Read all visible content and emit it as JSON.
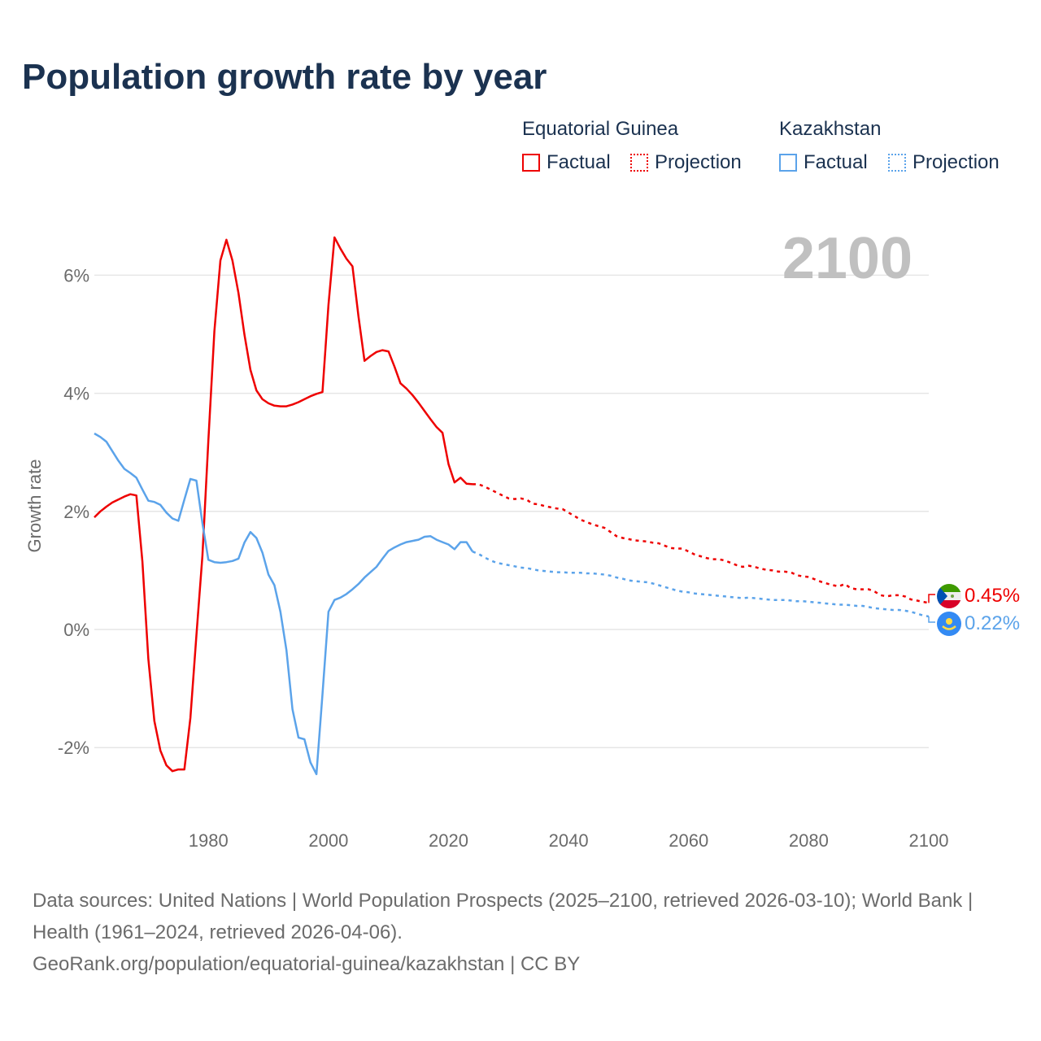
{
  "chart_data": {
    "type": "line",
    "title": "Population growth rate by year",
    "ylabel": "Growth rate",
    "xlabel": "",
    "xlim": [
      1961,
      2100
    ],
    "ylim": [
      -3.25,
      7.2
    ],
    "grid": true,
    "year_watermark": "2100",
    "x_ticks": [
      1980,
      2000,
      2020,
      2040,
      2060,
      2080,
      2100
    ],
    "x_tick_labels": [
      "1980",
      "2000",
      "2020",
      "2040",
      "2060",
      "2080",
      "2100"
    ],
    "y_ticks": [
      -2,
      0,
      2,
      4,
      6
    ],
    "y_tick_labels": [
      "-2%",
      "0%",
      "2%",
      "4%",
      "6%"
    ],
    "legend": {
      "placement": "top-right",
      "groups": [
        {
          "country": "Equatorial Guinea",
          "factual": "Factual",
          "projection": "Projection",
          "color": "#ee0000"
        },
        {
          "country": "Kazakhstan",
          "factual": "Factual",
          "projection": "Projection",
          "color": "#5ba3ea"
        }
      ]
    },
    "series": [
      {
        "name": "Equatorial Guinea",
        "color": "#ee0000",
        "end_label": "0.45%",
        "flag": "equatorial-guinea",
        "factual": {
          "start_year": 1961,
          "values": [
            1.9,
            2.0,
            2.08,
            2.15,
            2.2,
            2.25,
            2.29,
            2.27,
            1.15,
            -0.5,
            -1.55,
            -2.05,
            -2.3,
            -2.4,
            -2.37,
            -2.37,
            -1.5,
            -0.1,
            1.25,
            3.2,
            5.05,
            6.25,
            6.6,
            6.25,
            5.7,
            5.0,
            4.4,
            4.05,
            3.9,
            3.83,
            3.79,
            3.78,
            3.78,
            3.81,
            3.85,
            3.9,
            3.95,
            3.99,
            4.02,
            5.5,
            6.64,
            6.45,
            6.28,
            6.15,
            5.3,
            4.55,
            4.63,
            4.7,
            4.73,
            4.71,
            4.45,
            4.17,
            4.08,
            3.97,
            3.84,
            3.7,
            3.56,
            3.43,
            3.33,
            2.8,
            2.49,
            2.57,
            2.47,
            2.46
          ]
        },
        "projection": {
          "start_year": 2024,
          "values": [
            2.46,
            2.46,
            2.42,
            2.37,
            2.32,
            2.27,
            2.22,
            2.21,
            2.22,
            2.2,
            2.13,
            2.12,
            2.09,
            2.07,
            2.05,
            2.04,
            1.98,
            1.92,
            1.86,
            1.82,
            1.78,
            1.75,
            1.72,
            1.65,
            1.58,
            1.55,
            1.53,
            1.51,
            1.5,
            1.49,
            1.47,
            1.46,
            1.42,
            1.38,
            1.37,
            1.37,
            1.32,
            1.27,
            1.24,
            1.21,
            1.19,
            1.19,
            1.17,
            1.13,
            1.09,
            1.06,
            1.08,
            1.06,
            1.03,
            1.01,
            1.0,
            0.98,
            0.98,
            0.97,
            0.92,
            0.9,
            0.89,
            0.85,
            0.81,
            0.78,
            0.75,
            0.73,
            0.77,
            0.7,
            0.68,
            0.68,
            0.68,
            0.64,
            0.58,
            0.56,
            0.58,
            0.58,
            0.56,
            0.51,
            0.49,
            0.47,
            0.45
          ]
        }
      },
      {
        "name": "Kazakhstan",
        "color": "#5ba3ea",
        "end_label": "0.22%",
        "flag": "kazakhstan",
        "factual": {
          "start_year": 1961,
          "values": [
            3.32,
            3.26,
            3.18,
            3.02,
            2.86,
            2.72,
            2.65,
            2.57,
            2.37,
            2.18,
            2.16,
            2.11,
            1.98,
            1.88,
            1.84,
            2.2,
            2.55,
            2.52,
            1.8,
            1.18,
            1.14,
            1.13,
            1.14,
            1.16,
            1.2,
            1.47,
            1.65,
            1.55,
            1.3,
            0.93,
            0.75,
            0.3,
            -0.35,
            -1.35,
            -1.83,
            -1.86,
            -2.25,
            -2.45,
            -1.1,
            0.3,
            0.5,
            0.54,
            0.6,
            0.68,
            0.77,
            0.88,
            0.97,
            1.06,
            1.2,
            1.33,
            1.39,
            1.44,
            1.48,
            1.5,
            1.52,
            1.57,
            1.58,
            1.52,
            1.48,
            1.44,
            1.36,
            1.48,
            1.48,
            1.32
          ]
        },
        "projection": {
          "start_year": 2024,
          "values": [
            1.32,
            1.28,
            1.22,
            1.17,
            1.13,
            1.11,
            1.09,
            1.07,
            1.05,
            1.04,
            1.02,
            1.0,
            0.99,
            0.98,
            0.97,
            0.97,
            0.96,
            0.96,
            0.96,
            0.95,
            0.95,
            0.94,
            0.93,
            0.91,
            0.88,
            0.86,
            0.83,
            0.82,
            0.81,
            0.8,
            0.78,
            0.75,
            0.72,
            0.69,
            0.66,
            0.64,
            0.63,
            0.61,
            0.6,
            0.59,
            0.58,
            0.57,
            0.56,
            0.55,
            0.54,
            0.53,
            0.54,
            0.53,
            0.52,
            0.51,
            0.5,
            0.5,
            0.5,
            0.49,
            0.48,
            0.48,
            0.47,
            0.46,
            0.45,
            0.44,
            0.43,
            0.42,
            0.42,
            0.41,
            0.4,
            0.4,
            0.38,
            0.36,
            0.35,
            0.34,
            0.33,
            0.33,
            0.32,
            0.3,
            0.27,
            0.24,
            0.22
          ]
        }
      }
    ]
  },
  "footer": {
    "sources": "Data sources: United Nations | World Population Prospects (2025–2100, retrieved 2026-03-10); World Bank | Health (1961–2024, retrieved 2026-04-06).",
    "credit": "GeoRank.org/population/equatorial-guinea/kazakhstan | CC BY"
  }
}
